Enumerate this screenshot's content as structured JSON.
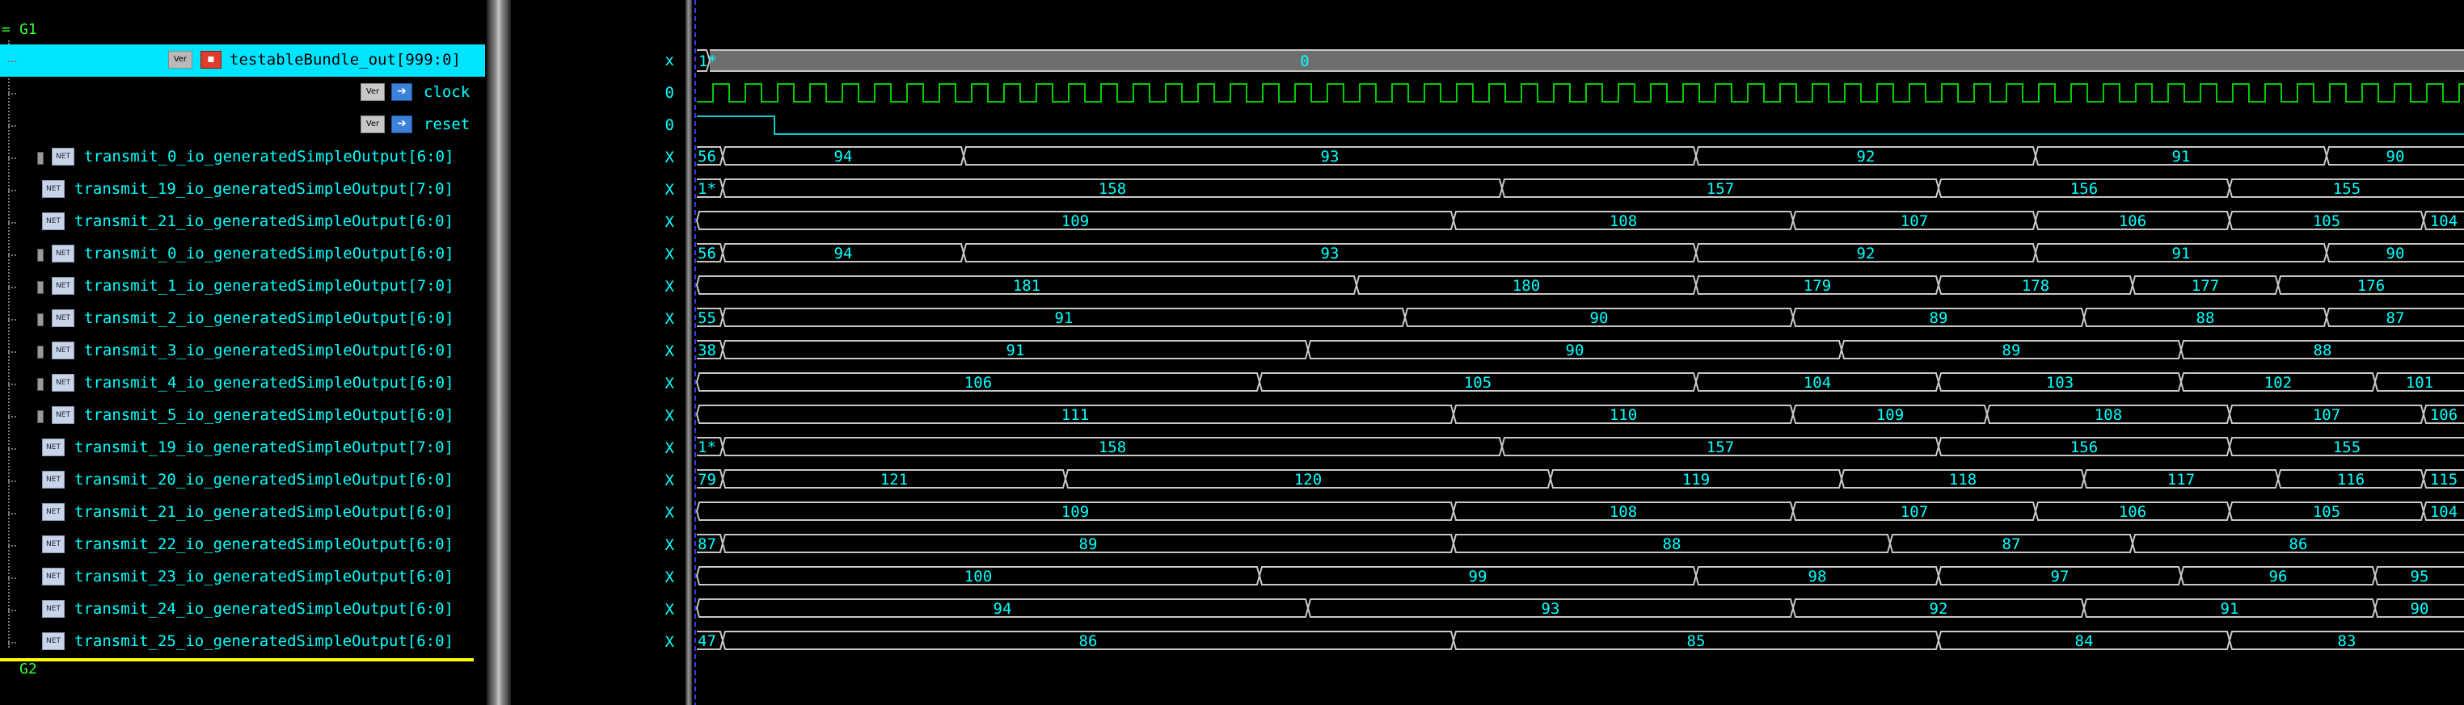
{
  "groups": {
    "top": "G1",
    "bottom": "G2",
    "top_marker": "="
  },
  "signals": [
    {
      "name": "testableBundle_out[999:0]",
      "kind": "top",
      "value": "x",
      "selected": true
    },
    {
      "name": "clock",
      "kind": "port",
      "value": "0"
    },
    {
      "name": "reset",
      "kind": "port",
      "value": "0"
    },
    {
      "name": "transmit_0_io_generatedSimpleOutput[6:0]",
      "kind": "net",
      "expand": true,
      "value": "X"
    },
    {
      "name": "transmit_19_io_generatedSimpleOutput[7:0]",
      "kind": "net",
      "value": "X"
    },
    {
      "name": "transmit_21_io_generatedSimpleOutput[6:0]",
      "kind": "net",
      "value": "X"
    },
    {
      "name": "transmit_0_io_generatedSimpleOutput[6:0]",
      "kind": "net",
      "expand": true,
      "value": "X"
    },
    {
      "name": "transmit_1_io_generatedSimpleOutput[7:0]",
      "kind": "net",
      "expand": true,
      "value": "X"
    },
    {
      "name": "transmit_2_io_generatedSimpleOutput[6:0]",
      "kind": "net",
      "expand": true,
      "value": "X"
    },
    {
      "name": "transmit_3_io_generatedSimpleOutput[6:0]",
      "kind": "net",
      "expand": true,
      "value": "X"
    },
    {
      "name": "transmit_4_io_generatedSimpleOutput[6:0]",
      "kind": "net",
      "expand": true,
      "value": "X"
    },
    {
      "name": "transmit_5_io_generatedSimpleOutput[6:0]",
      "kind": "net",
      "expand": true,
      "value": "X"
    },
    {
      "name": "transmit_19_io_generatedSimpleOutput[7:0]",
      "kind": "net",
      "value": "X"
    },
    {
      "name": "transmit_20_io_generatedSimpleOutput[6:0]",
      "kind": "net",
      "value": "X"
    },
    {
      "name": "transmit_21_io_generatedSimpleOutput[6:0]",
      "kind": "net",
      "value": "X"
    },
    {
      "name": "transmit_22_io_generatedSimpleOutput[6:0]",
      "kind": "net",
      "value": "X"
    },
    {
      "name": "transmit_23_io_generatedSimpleOutput[6:0]",
      "kind": "net",
      "value": "X"
    },
    {
      "name": "transmit_24_io_generatedSimpleOutput[6:0]",
      "kind": "net",
      "value": "X"
    },
    {
      "name": "transmit_25_io_generatedSimpleOutput[6:0]",
      "kind": "net",
      "value": "X"
    }
  ],
  "icon_labels": {
    "ver": "Ver",
    "net": "NET",
    "port_arrow": "➔",
    "red": "▪"
  },
  "waveforms": {
    "top_bus": {
      "initial": "1*",
      "value": "0"
    },
    "clock_period": 20,
    "reset_release": 48,
    "buses": [
      {
        "initial": "56",
        "segments": [
          {
            "t": 16,
            "v": "94"
          },
          {
            "t": 165,
            "v": "93"
          },
          {
            "t": 618,
            "v": "92"
          },
          {
            "t": 828,
            "v": "91"
          },
          {
            "t": 1008,
            "v": "90"
          }
        ]
      },
      {
        "initial": "1*",
        "segments": [
          {
            "t": 16,
            "v": "158"
          },
          {
            "t": 498,
            "v": "157"
          },
          {
            "t": 768,
            "v": "156"
          },
          {
            "t": 948,
            "v": "155"
          },
          {
            "t": 1098,
            "v": ""
          }
        ]
      },
      {
        "initial": "",
        "segments": [
          {
            "t": 0,
            "v": "109"
          },
          {
            "t": 468,
            "v": "108"
          },
          {
            "t": 678,
            "v": "107"
          },
          {
            "t": 828,
            "v": "106"
          },
          {
            "t": 948,
            "v": "105"
          },
          {
            "t": 1068,
            "v": "104"
          }
        ]
      },
      {
        "initial": "56",
        "segments": [
          {
            "t": 16,
            "v": "94"
          },
          {
            "t": 165,
            "v": "93"
          },
          {
            "t": 618,
            "v": "92"
          },
          {
            "t": 828,
            "v": "91"
          },
          {
            "t": 1008,
            "v": "90"
          }
        ]
      },
      {
        "initial": "",
        "segments": [
          {
            "t": 0,
            "v": "181"
          },
          {
            "t": 408,
            "v": "180"
          },
          {
            "t": 618,
            "v": "179"
          },
          {
            "t": 768,
            "v": "178"
          },
          {
            "t": 888,
            "v": "177"
          },
          {
            "t": 978,
            "v": "176"
          }
        ]
      },
      {
        "initial": "55",
        "segments": [
          {
            "t": 16,
            "v": "91"
          },
          {
            "t": 438,
            "v": "90"
          },
          {
            "t": 678,
            "v": "89"
          },
          {
            "t": 858,
            "v": "88"
          },
          {
            "t": 1008,
            "v": "87"
          }
        ]
      },
      {
        "initial": "38",
        "segments": [
          {
            "t": 16,
            "v": "91"
          },
          {
            "t": 378,
            "v": "90"
          },
          {
            "t": 708,
            "v": "89"
          },
          {
            "t": 918,
            "v": "88"
          },
          {
            "t": 1098,
            "v": ""
          }
        ]
      },
      {
        "initial": "",
        "segments": [
          {
            "t": 0,
            "v": "106"
          },
          {
            "t": 348,
            "v": "105"
          },
          {
            "t": 618,
            "v": "104"
          },
          {
            "t": 768,
            "v": "103"
          },
          {
            "t": 918,
            "v": "102"
          },
          {
            "t": 1038,
            "v": "101"
          }
        ]
      },
      {
        "initial": "",
        "segments": [
          {
            "t": 0,
            "v": "111"
          },
          {
            "t": 468,
            "v": "110"
          },
          {
            "t": 678,
            "v": "109"
          },
          {
            "t": 798,
            "v": "108"
          },
          {
            "t": 948,
            "v": "107"
          },
          {
            "t": 1068,
            "v": "106"
          }
        ]
      },
      {
        "initial": "1*",
        "segments": [
          {
            "t": 16,
            "v": "158"
          },
          {
            "t": 498,
            "v": "157"
          },
          {
            "t": 768,
            "v": "156"
          },
          {
            "t": 948,
            "v": "155"
          },
          {
            "t": 1098,
            "v": ""
          }
        ]
      },
      {
        "initial": "79",
        "segments": [
          {
            "t": 16,
            "v": "121"
          },
          {
            "t": 228,
            "v": "120"
          },
          {
            "t": 528,
            "v": "119"
          },
          {
            "t": 708,
            "v": "118"
          },
          {
            "t": 858,
            "v": "117"
          },
          {
            "t": 978,
            "v": "116"
          },
          {
            "t": 1068,
            "v": "115"
          }
        ]
      },
      {
        "initial": "",
        "segments": [
          {
            "t": 0,
            "v": "109"
          },
          {
            "t": 468,
            "v": "108"
          },
          {
            "t": 678,
            "v": "107"
          },
          {
            "t": 828,
            "v": "106"
          },
          {
            "t": 948,
            "v": "105"
          },
          {
            "t": 1068,
            "v": "104"
          }
        ]
      },
      {
        "initial": "87",
        "segments": [
          {
            "t": 16,
            "v": "89"
          },
          {
            "t": 468,
            "v": "88"
          },
          {
            "t": 738,
            "v": "87"
          },
          {
            "t": 888,
            "v": "86"
          },
          {
            "t": 1098,
            "v": ""
          }
        ]
      },
      {
        "initial": "",
        "segments": [
          {
            "t": 0,
            "v": "100"
          },
          {
            "t": 348,
            "v": "99"
          },
          {
            "t": 618,
            "v": "98"
          },
          {
            "t": 768,
            "v": "97"
          },
          {
            "t": 918,
            "v": "96"
          },
          {
            "t": 1038,
            "v": "95"
          }
        ]
      },
      {
        "initial": "",
        "segments": [
          {
            "t": 0,
            "v": "94"
          },
          {
            "t": 378,
            "v": "93"
          },
          {
            "t": 678,
            "v": "92"
          },
          {
            "t": 858,
            "v": "91"
          },
          {
            "t": 1038,
            "v": "90"
          }
        ]
      },
      {
        "initial": "47",
        "segments": [
          {
            "t": 16,
            "v": "86"
          },
          {
            "t": 468,
            "v": "85"
          },
          {
            "t": 768,
            "v": "84"
          },
          {
            "t": 948,
            "v": "83"
          },
          {
            "t": 1098,
            "v": ""
          }
        ]
      }
    ],
    "colors": {
      "bus": "#c8c8c8",
      "bus_text": "#00ffff",
      "clock": "#00cc00",
      "reset": "#00cccc",
      "top_bus_fill": "#6e6e6e",
      "cursor": "#3a3aff"
    }
  }
}
